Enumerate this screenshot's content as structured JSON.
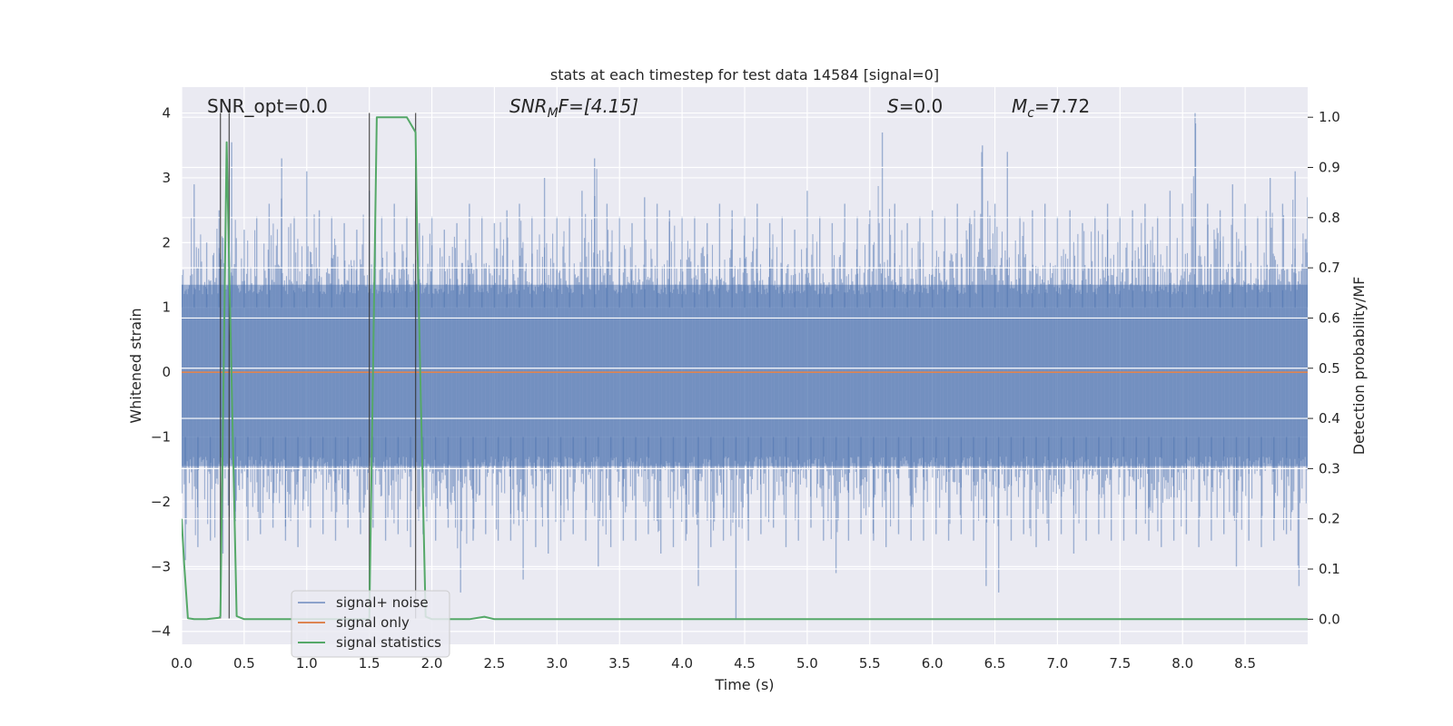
{
  "chart_data": {
    "type": "line",
    "title": "stats at each timestep for test data 14584 [signal=0]",
    "xlabel": "Time (s)",
    "ylabel_left": "Whitened strain",
    "ylabel_right": "Detection probability/MF",
    "xlim": [
      0.0,
      9.0
    ],
    "ylim_left": [
      -4.2,
      4.4
    ],
    "ylim_right": [
      -0.05,
      1.06
    ],
    "x_ticks": [
      "0.0",
      "0.5",
      "1.0",
      "1.5",
      "2.0",
      "2.5",
      "3.0",
      "3.5",
      "4.0",
      "4.5",
      "5.0",
      "5.5",
      "6.0",
      "6.5",
      "7.0",
      "7.5",
      "8.0",
      "8.5"
    ],
    "y_ticks_left": [
      "4",
      "3",
      "2",
      "1",
      "0",
      "−1",
      "−2",
      "−3",
      "−4"
    ],
    "y_ticks_right": [
      "1.0",
      "0.9",
      "0.8",
      "0.7",
      "0.6",
      "0.5",
      "0.4",
      "0.3",
      "0.2",
      "0.1",
      "0.0"
    ],
    "grid": true,
    "legend_position": "lower-left",
    "annotations": {
      "snr_opt": "SNR_opt=0.0",
      "snr_mf_main": "SNR",
      "snr_mf_sub": "M",
      "snr_mf_rest": "F=[4.15]",
      "s_main": "S",
      "s_rest": "=0.0",
      "mc_main": "M",
      "mc_sub": "c",
      "mc_rest": "=7.72"
    },
    "vertical_markers": [
      0.31,
      0.38,
      1.5,
      1.87
    ],
    "series": [
      {
        "name": "signal+ noise",
        "axis": "left",
        "color": "#4c72b0",
        "envelope": {
          "x": [
            0.0,
            0.1,
            0.2,
            0.3,
            0.4,
            0.5,
            0.6,
            0.7,
            0.8,
            0.9,
            1.0,
            1.1,
            1.2,
            1.3,
            1.4,
            1.5,
            1.6,
            1.7,
            1.8,
            1.9,
            2.0,
            2.1,
            2.2,
            2.3,
            2.4,
            2.5,
            2.6,
            2.7,
            2.8,
            2.9,
            3.0,
            3.1,
            3.2,
            3.3,
            3.4,
            3.5,
            3.6,
            3.7,
            3.8,
            3.9,
            4.0,
            4.1,
            4.2,
            4.3,
            4.4,
            4.5,
            4.6,
            4.7,
            4.8,
            4.9,
            5.0,
            5.1,
            5.2,
            5.3,
            5.4,
            5.5,
            5.6,
            5.7,
            5.8,
            5.9,
            6.0,
            6.1,
            6.2,
            6.3,
            6.4,
            6.5,
            6.6,
            6.7,
            6.8,
            6.9,
            7.0,
            7.1,
            7.2,
            7.3,
            7.4,
            7.5,
            7.6,
            7.7,
            7.8,
            7.9,
            8.0,
            8.1,
            8.2,
            8.3,
            8.4,
            8.5,
            8.6,
            8.7,
            8.8,
            8.9,
            9.0
          ],
          "upper": [
            1.5,
            2.9,
            2.0,
            2.5,
            3.55,
            2.2,
            2.4,
            2.6,
            3.3,
            2.4,
            3.1,
            2.5,
            2.4,
            2.3,
            2.2,
            2.8,
            2.4,
            2.6,
            2.4,
            2.3,
            2.4,
            2.2,
            2.3,
            2.6,
            2.4,
            2.3,
            2.5,
            2.6,
            2.4,
            3.0,
            2.4,
            2.4,
            2.8,
            3.3,
            2.6,
            2.4,
            2.3,
            2.7,
            2.6,
            2.5,
            2.4,
            2.4,
            2.3,
            2.6,
            2.5,
            2.4,
            2.6,
            2.3,
            2.4,
            2.2,
            2.8,
            2.4,
            2.3,
            2.6,
            2.4,
            2.5,
            3.7,
            2.6,
            2.3,
            2.4,
            2.5,
            2.4,
            2.6,
            2.4,
            3.5,
            2.6,
            3.4,
            2.4,
            2.5,
            2.6,
            2.4,
            2.5,
            2.3,
            2.4,
            2.6,
            2.4,
            2.5,
            2.6,
            2.4,
            2.8,
            2.6,
            4.0,
            2.6,
            2.5,
            2.9,
            2.6,
            2.4,
            3.0,
            2.6,
            3.1,
            2.7
          ],
          "lower": [
            -2.9,
            -2.7,
            -2.6,
            -2.8,
            -2.3,
            -2.6,
            -2.5,
            -2.4,
            -2.6,
            -2.7,
            -2.4,
            -2.5,
            -2.6,
            -2.4,
            -2.5,
            -2.4,
            -2.6,
            -2.5,
            -2.7,
            -2.5,
            -2.6,
            -2.4,
            -3.4,
            -2.6,
            -2.5,
            -2.6,
            -2.6,
            -3.2,
            -2.7,
            -2.8,
            -2.6,
            -2.5,
            -2.6,
            -3.0,
            -2.7,
            -2.6,
            -2.6,
            -2.5,
            -2.8,
            -2.7,
            -2.6,
            -3.3,
            -2.7,
            -2.6,
            -3.8,
            -2.6,
            -2.5,
            -2.4,
            -2.7,
            -2.6,
            -2.4,
            -2.6,
            -3.1,
            -2.6,
            -2.5,
            -2.6,
            -2.7,
            -2.5,
            -2.6,
            -2.6,
            -2.5,
            -2.6,
            -2.5,
            -2.6,
            -3.3,
            -3.4,
            -2.6,
            -2.5,
            -2.7,
            -2.6,
            -2.5,
            -2.8,
            -2.6,
            -2.5,
            -2.6,
            -2.6,
            -2.5,
            -2.6,
            -2.7,
            -2.6,
            -2.5,
            -2.7,
            -2.6,
            -2.5,
            -3.0,
            -2.6,
            -2.7,
            -2.6,
            -2.5,
            -3.3,
            -2.6
          ]
        }
      },
      {
        "name": "signal only",
        "axis": "left",
        "color": "#dd8452",
        "x": [
          0.0,
          9.0
        ],
        "y": [
          0.0,
          0.0
        ]
      },
      {
        "name": "signal statistics",
        "axis": "right",
        "color": "#55a868",
        "x": [
          0.0,
          0.02,
          0.05,
          0.1,
          0.2,
          0.3,
          0.31,
          0.36,
          0.38,
          0.44,
          0.5,
          0.6,
          1.0,
          1.2,
          1.4,
          1.5,
          1.53,
          1.56,
          1.8,
          1.87,
          1.88,
          1.95,
          2.0,
          2.3,
          2.42,
          2.5,
          3.0,
          4.0,
          5.0,
          6.0,
          7.0,
          8.0,
          9.0
        ],
        "y": [
          0.2,
          0.11,
          0.002,
          0.0,
          0.0,
          0.003,
          0.006,
          0.95,
          0.7,
          0.006,
          0.0,
          0.0,
          0.0,
          0.0,
          0.0,
          0.0,
          0.5,
          1.0,
          1.0,
          0.97,
          0.8,
          0.005,
          0.0,
          0.0,
          0.005,
          0.0,
          0.0,
          0.0,
          0.0,
          0.0,
          0.0,
          0.0,
          0.0
        ]
      }
    ]
  }
}
